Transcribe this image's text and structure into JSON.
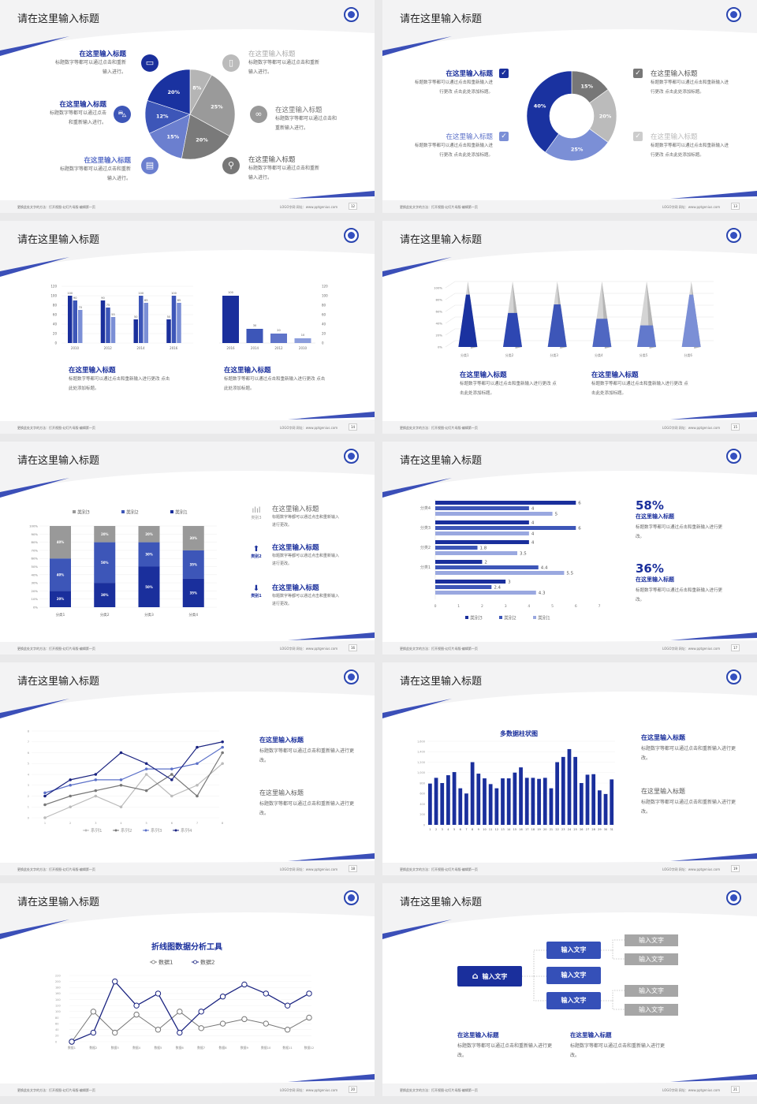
{
  "common": {
    "footer_left": "更换此处文字的方法：打开视图-幻灯片母版-编辑第一页",
    "footer_right": "LOGO字网   网址：www.pptgenius.com",
    "colors": {
      "navy": "#1a2f9c",
      "blue": "#3d56b8",
      "light_blue": "#7b8fd6",
      "gray": "#999999",
      "light_gray": "#bbbbbb",
      "accent": "#3b4fb8"
    }
  },
  "slides": [
    {
      "page": "12",
      "title": "请在这里输入标题",
      "items": [
        {
          "title": "在这里输入标题",
          "body": "标题数字等都可以通过点击和重新输入进行。",
          "icon": "monitor-icon"
        },
        {
          "title": "在这里输入标题",
          "body": "标题数字等都可以通过点击和重新输入进行。",
          "icon": "car-icon"
        },
        {
          "title": "在这里输入标题",
          "body": "标题数字等都可以通过点击和重新输入进行。",
          "icon": "book-icon"
        },
        {
          "title": "在这里输入标题",
          "body": "标题数字等都可以通过点击和重新输入进行。",
          "icon": "phone-icon"
        },
        {
          "title": "在这里输入标题",
          "body": "标题数字等都可以通过点击和重新输入进行。",
          "icon": "binoculars-icon"
        },
        {
          "title": "在这里输入标题",
          "body": "标题数字等都可以通过点击和重新输入进行。",
          "icon": "bicycle-icon"
        }
      ]
    },
    {
      "page": "13",
      "title": "请在这里输入标题",
      "items": [
        {
          "title": "在这里输入标题",
          "body": "标题数字等都可以通过点击和重新输入进行更改 点击此处添加标题。"
        },
        {
          "title": "在这里输入标题",
          "body": "标题数字等都可以通过点击和重新输入进行更改 点击此处添加标题。"
        },
        {
          "title": "在这里输入标题",
          "body": "标题数字等都可以通过点击和重新输入进行更改 点击此处添加标题。"
        },
        {
          "title": "在这里输入标题",
          "body": "标题数字等都可以通过点击和重新输入进行更改 点击此处添加标题。"
        }
      ]
    },
    {
      "page": "14",
      "title": "请在这里输入标题",
      "items": [
        {
          "title": "在这里输入标题",
          "body": "标题数字等都可以通过点击和重新输入进行更改 点击此处添加标题。"
        },
        {
          "title": "在这里输入标题",
          "body": "标题数字等都可以通过点击和重新输入进行更改 点击此处添加标题。"
        }
      ]
    },
    {
      "page": "15",
      "title": "请在这里输入标题",
      "items": [
        {
          "title": "在这里输入标题",
          "body": "标题数字等都可以通过点击和重新输入进行更改 点击此处添加标题。"
        },
        {
          "title": "在这里输入标题",
          "body": "标题数字等都可以通过点击和重新输入进行更改 点击此处添加标题。"
        }
      ]
    },
    {
      "page": "16",
      "title": "请在这里输入标题",
      "items": [
        {
          "title": "在这里输入标题",
          "body": "标题数字等都可以通过点击和重新输入进行更改。",
          "tag": "类别3",
          "icon": "bar-chart-icon"
        },
        {
          "title": "在这里输入标题",
          "body": "标题数字等都可以通过点击和重新输入进行更改。",
          "tag": "类别2",
          "icon": "upload-icon"
        },
        {
          "title": "在这里输入标题",
          "body": "标题数字等都可以通过点击和重新输入进行更改。",
          "tag": "类别1",
          "icon": "download-icon"
        }
      ]
    },
    {
      "page": "17",
      "title": "请在这里输入标题",
      "items": [
        {
          "stat": "58%",
          "title": "在这里输入标题",
          "body": "标题数字等都可以通过点击和重新输入进行更改。"
        },
        {
          "stat": "36%",
          "title": "在这里输入标题",
          "body": "标题数字等都可以通过点击和重新输入进行更改。"
        }
      ]
    },
    {
      "page": "18",
      "title": "请在这里输入标题",
      "items": [
        {
          "title": "在这里输入标题",
          "body": "标题数字等都可以通过点击和重新输入进行更改。"
        },
        {
          "title": "在这里输入标题",
          "body": "标题数字等都可以通过点击和重新输入进行更改。"
        }
      ]
    },
    {
      "page": "19",
      "title": "请在这里输入标题",
      "items": [
        {
          "title": "在这里输入标题",
          "body": "标题数字等都可以通过点击和重新输入进行更改。"
        },
        {
          "title": "在这里输入标题",
          "body": "标题数字等都可以通过点击和重新输入进行更改。"
        }
      ]
    },
    {
      "page": "20",
      "title": "请在这里输入标题"
    },
    {
      "page": "21",
      "title": "请在这里输入标题",
      "diagram": {
        "root": "输入文字",
        "mid": [
          "输入文字",
          "输入文字",
          "输入文字"
        ],
        "leaves": [
          "输入文字",
          "输入文字",
          "输入文字",
          "输入文字"
        ]
      },
      "items": [
        {
          "title": "在这里输入标题",
          "body": "标题数字等都可以通过点击和重新输入进行更改。"
        },
        {
          "title": "在这里输入标题",
          "body": "标题数字等都可以通过点击和重新输入进行更改。"
        }
      ]
    }
  ],
  "chart_data": [
    {
      "type": "pie",
      "values": [
        8,
        25,
        20,
        15,
        12,
        20
      ],
      "labels": [
        "8%",
        "25%",
        "20%",
        "15%",
        "12%",
        "20%"
      ],
      "colors": [
        "#b5b5b5",
        "#9a9a9a",
        "#7a7a7a",
        "#6b7fcf",
        "#3d56b8",
        "#1a32a0"
      ]
    },
    {
      "type": "pie",
      "donut": true,
      "values": [
        15,
        20,
        25,
        40
      ],
      "labels": [
        "15%",
        "20%",
        "25%",
        "40%"
      ],
      "colors": [
        "#777777",
        "#bbbbbb",
        "#7b8fd6",
        "#1a32a0"
      ]
    },
    {
      "type": "bar",
      "categories": [
        "2010",
        "2012",
        "2014",
        "2016"
      ],
      "series": [
        {
          "values": [
            100,
            90,
            50,
            50
          ]
        },
        {
          "values": [
            90,
            75,
            100,
            100
          ]
        },
        {
          "values": [
            70,
            55,
            85,
            85
          ]
        }
      ],
      "ylim": [
        0,
        120
      ],
      "yticks": [
        0,
        20,
        40,
        60,
        80,
        100,
        120
      ]
    },
    {
      "type": "bar",
      "categories": [
        "2016",
        "2014",
        "2012",
        "2010"
      ],
      "values": [
        100,
        30,
        20,
        10
      ],
      "ylim": [
        0,
        120
      ],
      "yticks": [
        0,
        20,
        40,
        60,
        80,
        100,
        120
      ]
    },
    {
      "type": "bar",
      "variant": "3d-cone",
      "categories": [
        "分类1",
        "分类2",
        "分类3",
        "分类4",
        "分类5",
        "分类6"
      ],
      "values": [
        80,
        52,
        65,
        43,
        33,
        80
      ],
      "ylim": [
        0,
        100
      ],
      "yticks": [
        "0%",
        "20%",
        "40%",
        "60%",
        "80%",
        "100%"
      ]
    },
    {
      "type": "bar",
      "stacked": true,
      "categories": [
        "分类1",
        "分类2",
        "分类3",
        "分类4"
      ],
      "series": [
        {
          "name": "类别3",
          "values": [
            40,
            20,
            20,
            30
          ]
        },
        {
          "name": "类别2",
          "values": [
            40,
            50,
            30,
            35
          ]
        },
        {
          "name": "类别1",
          "values": [
            20,
            30,
            50,
            35
          ]
        }
      ],
      "ylim": [
        0,
        100
      ],
      "yticks": [
        "0%",
        "10%",
        "20%",
        "30%",
        "40%",
        "50%",
        "60%",
        "70%",
        "80%",
        "90%",
        "100%"
      ],
      "legend": "top"
    },
    {
      "type": "bar",
      "horizontal": true,
      "categories": [
        "分类4",
        "分类3",
        "分类2",
        "分类1",
        ""
      ],
      "series": [
        {
          "name": "类别3",
          "values": [
            6,
            4,
            4,
            2,
            3
          ]
        },
        {
          "name": "类别2",
          "values": [
            4,
            6,
            1.8,
            4.4,
            2.4
          ]
        },
        {
          "name": "类别1",
          "values": [
            5,
            4,
            3.5,
            5.5,
            4.3
          ]
        }
      ],
      "xlim": [
        0,
        7
      ],
      "xticks": [
        0,
        1,
        2,
        3,
        4,
        5,
        6,
        7
      ],
      "legend": "bottom"
    },
    {
      "type": "line",
      "x": [
        1,
        2,
        3,
        4,
        5,
        6,
        7,
        8
      ],
      "series": [
        {
          "name": "系列1",
          "values": [
            0,
            1,
            2,
            1,
            4,
            2,
            3,
            5
          ]
        },
        {
          "name": "系列2",
          "values": [
            1.2,
            2,
            2.5,
            3,
            2.5,
            4,
            2,
            6
          ]
        },
        {
          "name": "系列3",
          "values": [
            2.3,
            3,
            3.5,
            3.5,
            4.5,
            4.5,
            5,
            6.5
          ]
        },
        {
          "name": "系列4",
          "values": [
            2,
            3.5,
            4,
            6,
            5,
            3.5,
            6.5,
            7
          ]
        }
      ],
      "ylim": [
        0,
        8
      ],
      "legend": "bottom"
    },
    {
      "type": "bar",
      "title": "多数据柱状图",
      "categories": [
        "1",
        "2",
        "3",
        "4",
        "5",
        "6",
        "7",
        "8",
        "9",
        "10",
        "11",
        "12",
        "13",
        "14",
        "15",
        "16",
        "17",
        "18",
        "19",
        "20",
        "21",
        "22",
        "23",
        "24",
        "25",
        "26",
        "27",
        "28",
        "29",
        "30",
        "31"
      ],
      "values": [
        790,
        900,
        800,
        950,
        1010,
        700,
        600,
        1200,
        980,
        890,
        780,
        700,
        890,
        890,
        1000,
        1100,
        900,
        900,
        880,
        900,
        700,
        1200,
        1300,
        1450,
        1300,
        800,
        960,
        970,
        660,
        590,
        870
      ],
      "ylim": [
        0,
        1600
      ],
      "yticks": [
        "0",
        "200",
        "400",
        "600",
        "800",
        "1,000",
        "1,200",
        "1,400",
        "1,600"
      ]
    },
    {
      "type": "line",
      "title": "折线图数据分析工具",
      "categories": [
        "数据1",
        "数据2",
        "数据3",
        "数据4",
        "数据5",
        "数据6",
        "数据7",
        "数据8",
        "数据9",
        "数据10",
        "数据11",
        "数据12"
      ],
      "series": [
        {
          "name": "数据1",
          "values": [
            0,
            100,
            30,
            90,
            40,
            100,
            45,
            60,
            75,
            60,
            40,
            80
          ]
        },
        {
          "name": "数据2",
          "values": [
            0,
            30,
            200,
            120,
            160,
            30,
            100,
            150,
            190,
            160,
            120,
            160
          ]
        }
      ],
      "ylim": [
        0,
        220
      ],
      "yticks": [
        0,
        20,
        40,
        60,
        80,
        100,
        120,
        140,
        160,
        180,
        200,
        220
      ],
      "legend": "top"
    }
  ]
}
